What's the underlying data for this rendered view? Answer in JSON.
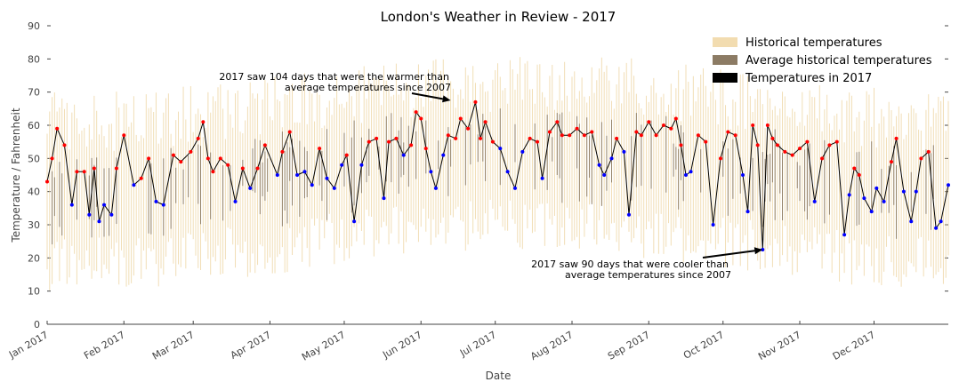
{
  "chart_data": {
    "type": "line",
    "title": "London's Weather in Review - 2017",
    "xlabel": "Date",
    "ylabel": "Temperature / Fahrenheit",
    "ylim": [
      0,
      90
    ],
    "yticks": [
      0,
      10,
      20,
      30,
      40,
      50,
      60,
      70,
      80,
      90
    ],
    "xlim": [
      "2017-01-01",
      "2017-12-31"
    ],
    "xticks": [
      {
        "label": "Jan 2017",
        "date": "2017-01-01"
      },
      {
        "label": "Feb 2017",
        "date": "2017-02-01"
      },
      {
        "label": "Mar 2017",
        "date": "2017-03-01"
      },
      {
        "label": "Apr 2017",
        "date": "2017-04-01"
      },
      {
        "label": "May 2017",
        "date": "2017-05-01"
      },
      {
        "label": "Jun 2017",
        "date": "2017-06-01"
      },
      {
        "label": "Jul 2017",
        "date": "2017-07-01"
      },
      {
        "label": "Aug 2017",
        "date": "2017-08-01"
      },
      {
        "label": "Sep 2017",
        "date": "2017-09-01"
      },
      {
        "label": "Oct 2017",
        "date": "2017-10-01"
      },
      {
        "label": "Nov 2017",
        "date": "2017-11-01"
      },
      {
        "label": "Dec 2017",
        "date": "2017-12-01"
      }
    ],
    "legend_position": "top-right",
    "legend": [
      {
        "label": "Historical temperatures",
        "color": "#f2dcb0"
      },
      {
        "label": "Average historical temperatures",
        "color": "#8c7b64"
      },
      {
        "label": "Temperatures in 2017",
        "color": "#000000"
      }
    ],
    "colors": {
      "historical": "#ecd39e",
      "average": "#6b5a44",
      "line_2017": "#000000",
      "warmer_marker": "#ff0000",
      "cooler_marker": "#0000ff"
    },
    "annotations": [
      {
        "text": [
          "2017 saw 104 days that were the warmer than",
          "average temperatures since 2007"
        ],
        "point": {
          "date": "2017-06-13",
          "value": 67.5
        }
      },
      {
        "text": [
          "2017 saw 90 days that were cooler than",
          "average temperatures since 2007"
        ],
        "point": {
          "date": "2017-10-17",
          "value": 22.5
        }
      }
    ],
    "anchor_series": {
      "name": "Temperatures in 2017",
      "points": [
        {
          "date": "2017-01-01",
          "value": 43
        },
        {
          "date": "2017-01-03",
          "value": 50
        },
        {
          "date": "2017-01-05",
          "value": 59
        },
        {
          "date": "2017-01-08",
          "value": 54
        },
        {
          "date": "2017-01-11",
          "value": 36
        },
        {
          "date": "2017-01-13",
          "value": 46
        },
        {
          "date": "2017-01-16",
          "value": 46
        },
        {
          "date": "2017-01-18",
          "value": 33
        },
        {
          "date": "2017-01-20",
          "value": 47
        },
        {
          "date": "2017-01-22",
          "value": 31
        },
        {
          "date": "2017-01-24",
          "value": 36
        },
        {
          "date": "2017-01-27",
          "value": 33
        },
        {
          "date": "2017-01-29",
          "value": 47
        },
        {
          "date": "2017-02-01",
          "value": 57
        },
        {
          "date": "2017-02-05",
          "value": 42
        },
        {
          "date": "2017-02-08",
          "value": 44
        },
        {
          "date": "2017-02-11",
          "value": 50
        },
        {
          "date": "2017-02-14",
          "value": 37
        },
        {
          "date": "2017-02-17",
          "value": 36
        },
        {
          "date": "2017-02-21",
          "value": 51
        },
        {
          "date": "2017-02-24",
          "value": 49
        },
        {
          "date": "2017-02-28",
          "value": 52
        },
        {
          "date": "2017-03-03",
          "value": 56
        },
        {
          "date": "2017-03-05",
          "value": 61
        },
        {
          "date": "2017-03-07",
          "value": 50
        },
        {
          "date": "2017-03-09",
          "value": 46
        },
        {
          "date": "2017-03-12",
          "value": 50
        },
        {
          "date": "2017-03-15",
          "value": 48
        },
        {
          "date": "2017-03-18",
          "value": 37
        },
        {
          "date": "2017-03-21",
          "value": 47
        },
        {
          "date": "2017-03-24",
          "value": 41
        },
        {
          "date": "2017-03-27",
          "value": 47
        },
        {
          "date": "2017-03-30",
          "value": 54
        },
        {
          "date": "2017-04-04",
          "value": 45
        },
        {
          "date": "2017-04-06",
          "value": 52
        },
        {
          "date": "2017-04-09",
          "value": 58
        },
        {
          "date": "2017-04-12",
          "value": 45
        },
        {
          "date": "2017-04-15",
          "value": 46
        },
        {
          "date": "2017-04-18",
          "value": 42
        },
        {
          "date": "2017-04-21",
          "value": 53
        },
        {
          "date": "2017-04-24",
          "value": 44
        },
        {
          "date": "2017-04-27",
          "value": 41
        },
        {
          "date": "2017-04-30",
          "value": 48
        },
        {
          "date": "2017-05-02",
          "value": 51
        },
        {
          "date": "2017-05-05",
          "value": 31
        },
        {
          "date": "2017-05-08",
          "value": 48
        },
        {
          "date": "2017-05-11",
          "value": 55
        },
        {
          "date": "2017-05-14",
          "value": 56
        },
        {
          "date": "2017-05-17",
          "value": 38
        },
        {
          "date": "2017-05-19",
          "value": 55
        },
        {
          "date": "2017-05-22",
          "value": 56
        },
        {
          "date": "2017-05-25",
          "value": 51
        },
        {
          "date": "2017-05-28",
          "value": 54
        },
        {
          "date": "2017-05-30",
          "value": 64
        },
        {
          "date": "2017-06-01",
          "value": 62
        },
        {
          "date": "2017-06-03",
          "value": 53
        },
        {
          "date": "2017-06-05",
          "value": 46
        },
        {
          "date": "2017-06-07",
          "value": 41
        },
        {
          "date": "2017-06-10",
          "value": 51
        },
        {
          "date": "2017-06-12",
          "value": 57
        },
        {
          "date": "2017-06-15",
          "value": 56
        },
        {
          "date": "2017-06-17",
          "value": 62
        },
        {
          "date": "2017-06-20",
          "value": 59
        },
        {
          "date": "2017-06-23",
          "value": 67
        },
        {
          "date": "2017-06-25",
          "value": 56
        },
        {
          "date": "2017-06-27",
          "value": 61
        },
        {
          "date": "2017-06-30",
          "value": 55
        },
        {
          "date": "2017-07-03",
          "value": 53
        },
        {
          "date": "2017-07-06",
          "value": 46
        },
        {
          "date": "2017-07-09",
          "value": 41
        },
        {
          "date": "2017-07-12",
          "value": 52
        },
        {
          "date": "2017-07-15",
          "value": 56
        },
        {
          "date": "2017-07-18",
          "value": 55
        },
        {
          "date": "2017-07-20",
          "value": 44
        },
        {
          "date": "2017-07-23",
          "value": 58
        },
        {
          "date": "2017-07-26",
          "value": 61
        },
        {
          "date": "2017-07-28",
          "value": 57
        },
        {
          "date": "2017-07-31",
          "value": 57
        },
        {
          "date": "2017-08-03",
          "value": 59
        },
        {
          "date": "2017-08-06",
          "value": 57
        },
        {
          "date": "2017-08-09",
          "value": 58
        },
        {
          "date": "2017-08-12",
          "value": 48
        },
        {
          "date": "2017-08-14",
          "value": 45
        },
        {
          "date": "2017-08-17",
          "value": 50
        },
        {
          "date": "2017-08-19",
          "value": 56
        },
        {
          "date": "2017-08-22",
          "value": 52
        },
        {
          "date": "2017-08-24",
          "value": 33
        },
        {
          "date": "2017-08-27",
          "value": 58
        },
        {
          "date": "2017-08-29",
          "value": 57
        },
        {
          "date": "2017-09-01",
          "value": 61
        },
        {
          "date": "2017-09-04",
          "value": 57
        },
        {
          "date": "2017-09-07",
          "value": 60
        },
        {
          "date": "2017-09-10",
          "value": 59
        },
        {
          "date": "2017-09-12",
          "value": 62
        },
        {
          "date": "2017-09-14",
          "value": 54
        },
        {
          "date": "2017-09-16",
          "value": 45
        },
        {
          "date": "2017-09-18",
          "value": 46
        },
        {
          "date": "2017-09-21",
          "value": 57
        },
        {
          "date": "2017-09-24",
          "value": 55
        },
        {
          "date": "2017-09-27",
          "value": 30
        },
        {
          "date": "2017-09-30",
          "value": 50
        },
        {
          "date": "2017-10-03",
          "value": 58
        },
        {
          "date": "2017-10-06",
          "value": 57
        },
        {
          "date": "2017-10-09",
          "value": 45
        },
        {
          "date": "2017-10-11",
          "value": 34
        },
        {
          "date": "2017-10-13",
          "value": 60
        },
        {
          "date": "2017-10-15",
          "value": 54
        },
        {
          "date": "2017-10-17",
          "value": 22.5
        },
        {
          "date": "2017-10-19",
          "value": 60
        },
        {
          "date": "2017-10-21",
          "value": 56
        },
        {
          "date": "2017-10-23",
          "value": 54
        },
        {
          "date": "2017-10-26",
          "value": 52
        },
        {
          "date": "2017-10-29",
          "value": 51
        },
        {
          "date": "2017-11-01",
          "value": 53
        },
        {
          "date": "2017-11-04",
          "value": 55
        },
        {
          "date": "2017-11-07",
          "value": 37
        },
        {
          "date": "2017-11-10",
          "value": 50
        },
        {
          "date": "2017-11-13",
          "value": 54
        },
        {
          "date": "2017-11-16",
          "value": 55
        },
        {
          "date": "2017-11-19",
          "value": 27
        },
        {
          "date": "2017-11-21",
          "value": 39
        },
        {
          "date": "2017-11-23",
          "value": 47
        },
        {
          "date": "2017-11-25",
          "value": 45
        },
        {
          "date": "2017-11-27",
          "value": 38
        },
        {
          "date": "2017-11-30",
          "value": 34
        },
        {
          "date": "2017-12-02",
          "value": 41
        },
        {
          "date": "2017-12-05",
          "value": 37
        },
        {
          "date": "2017-12-08",
          "value": 49
        },
        {
          "date": "2017-12-10",
          "value": 56
        },
        {
          "date": "2017-12-13",
          "value": 40
        },
        {
          "date": "2017-12-16",
          "value": 31
        },
        {
          "date": "2017-12-18",
          "value": 40
        },
        {
          "date": "2017-12-20",
          "value": 50
        },
        {
          "date": "2017-12-23",
          "value": 52
        },
        {
          "date": "2017-12-26",
          "value": 29
        },
        {
          "date": "2017-12-28",
          "value": 31
        },
        {
          "date": "2017-12-31",
          "value": 42
        }
      ]
    }
  }
}
